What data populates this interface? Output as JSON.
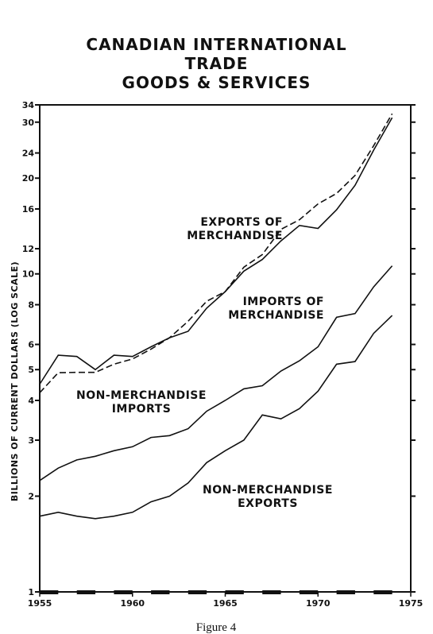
{
  "chart_data": {
    "type": "line",
    "title_lines": [
      "CANADIAN INTERNATIONAL",
      "TRADE",
      "GOODS & SERVICES"
    ],
    "y_label": "BILLIONS OF CURRENT DOLLARS (LOG SCALE)",
    "caption": "Figure 4",
    "log_y": true,
    "x": [
      1955,
      1956,
      1957,
      1958,
      1959,
      1960,
      1961,
      1962,
      1963,
      1964,
      1965,
      1966,
      1967,
      1968,
      1969,
      1970,
      1971,
      1972,
      1973,
      1974
    ],
    "xlim": [
      1955,
      1975
    ],
    "xticks": [
      1955,
      1960,
      1965,
      1970,
      1975
    ],
    "ylim": [
      1,
      34
    ],
    "yticks": [
      1,
      2,
      3,
      4,
      5,
      6,
      8,
      10,
      12,
      16,
      20,
      24,
      30,
      34
    ],
    "series": [
      {
        "name": "EXPORTS OF MERCHANDISE",
        "color": "#111111",
        "dashed": true,
        "values": [
          4.23,
          4.89,
          4.9,
          4.9,
          5.2,
          5.4,
          5.8,
          6.3,
          7.1,
          8.2,
          8.8,
          10.5,
          11.5,
          13.8,
          14.8,
          16.6,
          17.9,
          20.4,
          25.3,
          31.9
        ]
      },
      {
        "name": "IMPORTS OF MERCHANDISE",
        "color": "#111111",
        "dashed": false,
        "values": [
          4.5,
          5.55,
          5.5,
          5.0,
          5.55,
          5.5,
          5.9,
          6.3,
          6.6,
          7.8,
          8.8,
          10.2,
          11.1,
          12.7,
          14.2,
          13.9,
          15.9,
          19.0,
          24.5,
          31.0
        ]
      },
      {
        "name": "NON-MERCHANDISE IMPORTS",
        "color": "#111111",
        "dashed": false,
        "values": [
          2.24,
          2.45,
          2.6,
          2.67,
          2.78,
          2.86,
          3.06,
          3.1,
          3.26,
          3.7,
          4.0,
          4.35,
          4.45,
          4.95,
          5.33,
          5.9,
          7.3,
          7.5,
          9.1,
          10.6
        ]
      },
      {
        "name": "NON-MERCHANDISE EXPORTS",
        "color": "#111111",
        "dashed": false,
        "values": [
          1.73,
          1.78,
          1.73,
          1.7,
          1.73,
          1.78,
          1.92,
          2.0,
          2.2,
          2.55,
          2.78,
          3.0,
          3.6,
          3.5,
          3.77,
          4.28,
          5.2,
          5.3,
          6.5,
          7.4
        ]
      }
    ]
  }
}
